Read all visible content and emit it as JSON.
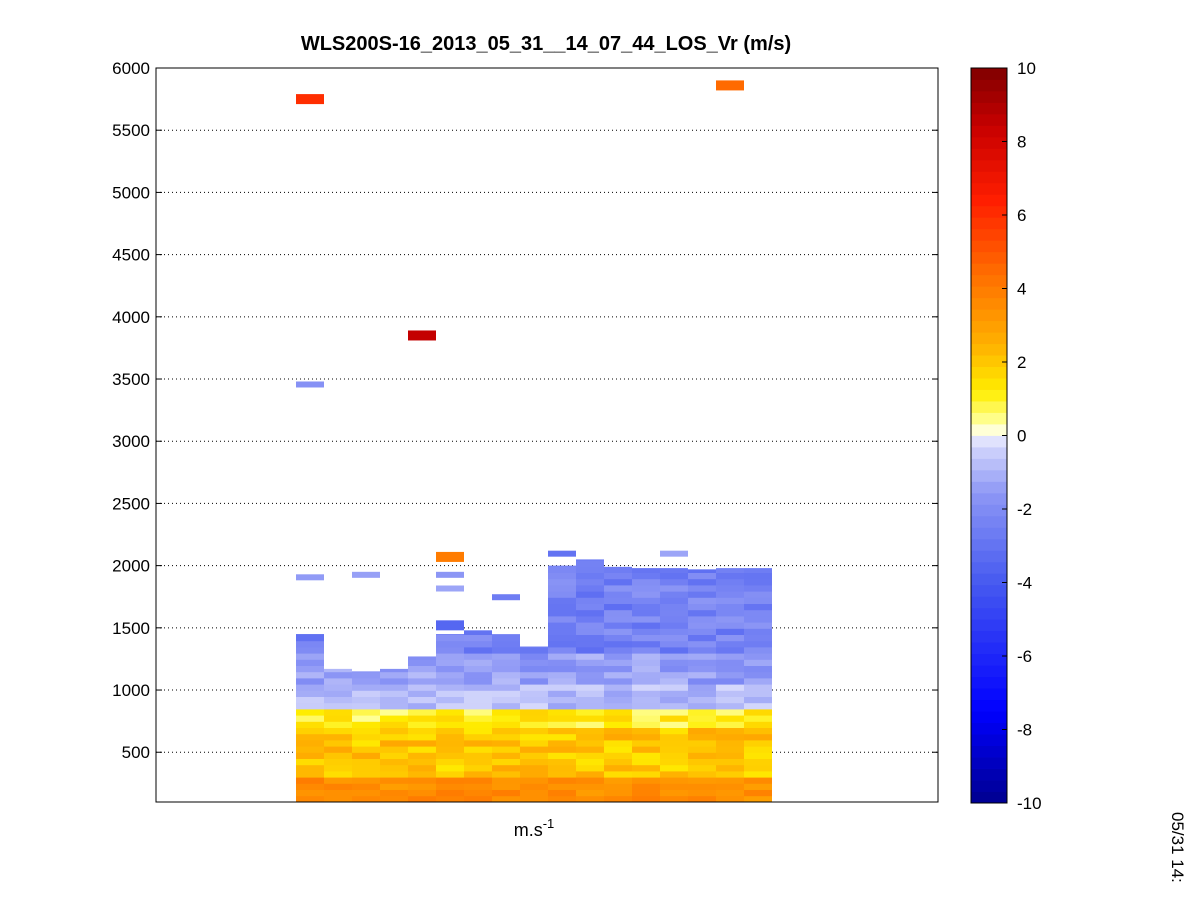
{
  "chart_data": {
    "type": "heatmap",
    "title": "WLS200S-16_2013_05_31__14_07_44_LOS_Vr (m/s)",
    "xlabel_base": "m.s",
    "xlabel_sup": "-1",
    "ylabel": "",
    "ylim": [
      100,
      6000
    ],
    "yticks": [
      500,
      1000,
      1500,
      2000,
      2500,
      3000,
      3500,
      4000,
      4500,
      5000,
      5500,
      6000
    ],
    "grid": true,
    "colorbar": {
      "range": [
        -10,
        10
      ],
      "ticks": [
        -10,
        -8,
        -6,
        -4,
        -2,
        0,
        2,
        4,
        6,
        8,
        10
      ],
      "levels": 64,
      "placement": "right"
    },
    "timestamp": "05/31 14:",
    "columns": [
      {
        "index": 0,
        "top": 1450,
        "outliers": [
          {
            "altitude": 5750,
            "value": 6.0
          },
          {
            "altitude": 3440,
            "value": -1.8
          },
          {
            "altitude": 1890,
            "value": -1.5
          }
        ]
      },
      {
        "index": 1,
        "top": 1170,
        "outliers": []
      },
      {
        "index": 2,
        "top": 1150,
        "outliers": [
          {
            "altitude": 1910,
            "value": -1.4
          }
        ]
      },
      {
        "index": 3,
        "top": 1170,
        "outliers": []
      },
      {
        "index": 4,
        "top": 1270,
        "outliers": [
          {
            "altitude": 3850,
            "value": 8.5
          }
        ]
      },
      {
        "index": 5,
        "top": 1450,
        "outliers": [
          {
            "altitude": 2070,
            "value": 4.0
          },
          {
            "altitude": 1910,
            "value": -1.6
          },
          {
            "altitude": 1800,
            "value": -1.3
          },
          {
            "altitude": 1520,
            "value": -3.5
          }
        ]
      },
      {
        "index": 6,
        "top": 1480,
        "outliers": []
      },
      {
        "index": 7,
        "top": 1450,
        "outliers": [
          {
            "altitude": 1730,
            "value": -2.6
          }
        ]
      },
      {
        "index": 8,
        "top": 1350,
        "outliers": []
      },
      {
        "index": 9,
        "top": 2000,
        "outliers": [
          {
            "altitude": 2080,
            "value": -3.0
          }
        ]
      },
      {
        "index": 10,
        "top": 2050,
        "outliers": []
      },
      {
        "index": 11,
        "top": 1990,
        "outliers": []
      },
      {
        "index": 12,
        "top": 1980,
        "outliers": []
      },
      {
        "index": 13,
        "top": 1980,
        "outliers": [
          {
            "altitude": 2080,
            "value": -1.3
          }
        ]
      },
      {
        "index": 14,
        "top": 1970,
        "outliers": []
      },
      {
        "index": 15,
        "top": 1980,
        "outliers": [
          {
            "altitude": 5860,
            "value": 4.5
          }
        ]
      },
      {
        "index": 16,
        "top": 1980,
        "outliers": []
      }
    ]
  }
}
